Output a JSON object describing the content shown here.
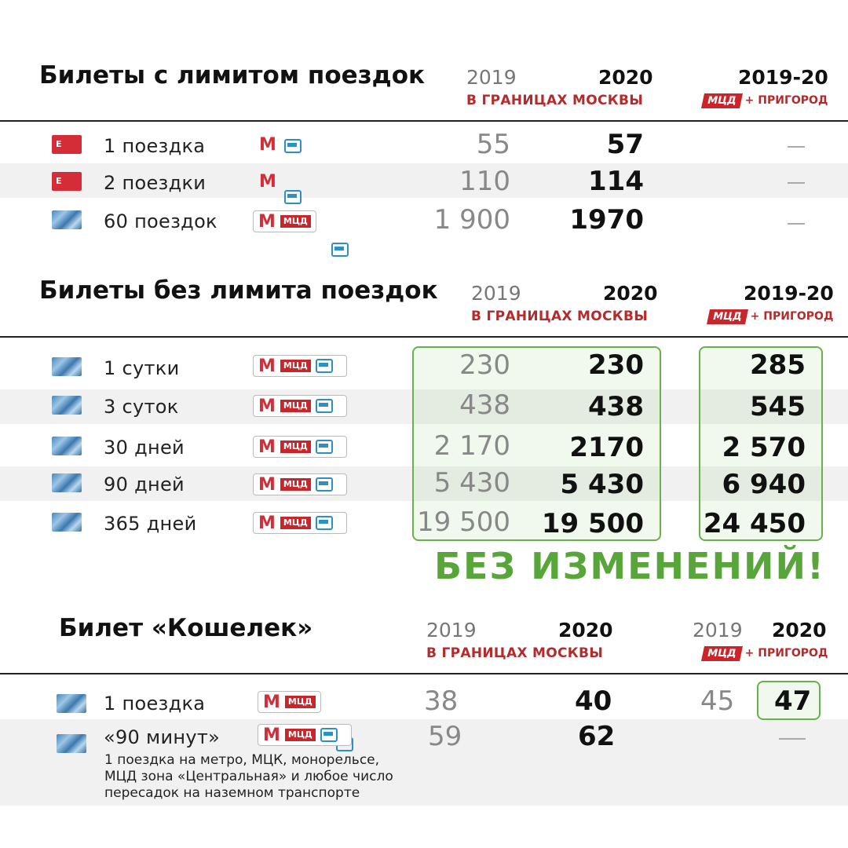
{
  "section1": {
    "title": "Билеты с лимитом поездок",
    "col2019": "2019",
    "col2020": "2020",
    "col2019_20": "2019-20",
    "moscow_label": "В ГРАНИЦАХ МОСКВЫ",
    "mcd_tag": "МЦД",
    "suburb_label": "+ ПРИГОРОД",
    "rows": [
      {
        "ticket_icon": "red-ticket-icon",
        "ticket_text": "E",
        "label": "1 поездка",
        "v2019": "55",
        "v2020": "57",
        "v2019_20": "—"
      },
      {
        "ticket_icon": "red-ticket-icon",
        "ticket_text": "E",
        "label": "2 поездки",
        "v2019": "110",
        "v2020": "114",
        "v2019_20": "—"
      },
      {
        "ticket_icon": "troika-card-icon",
        "label": "60 поездок",
        "v2019": "1 900",
        "v2020": "1970",
        "v2019_20": "—"
      }
    ]
  },
  "section2": {
    "title": "Билеты без лимита поездок",
    "col2019": "2019",
    "col2020": "2020",
    "col2019_20": "2019-20",
    "moscow_label": "В ГРАНИЦАХ МОСКВЫ",
    "mcd_tag": "МЦД",
    "suburb_label": "+ ПРИГОРОД",
    "rows": [
      {
        "label": "1 сутки",
        "v2019": "230",
        "v2020": "230",
        "v2019_20": "285"
      },
      {
        "label": "3 суток",
        "v2019": "438",
        "v2020": "438",
        "v2019_20": "545"
      },
      {
        "label": "30 дней",
        "v2019": "2 170",
        "v2020": "2170",
        "v2019_20": "2 570"
      },
      {
        "label": "90 дней",
        "v2019": "5 430",
        "v2020": "5 430",
        "v2019_20": "6 940"
      },
      {
        "label": "365 дней",
        "v2019": "19 500",
        "v2020": "19 500",
        "v2019_20": "24 450"
      }
    ],
    "no_change": "БЕЗ ИЗМЕНЕНИЙ!"
  },
  "section3": {
    "title": "Билет «Кошелек»",
    "col2019": "2019",
    "col2020": "2020",
    "col2019b": "2019",
    "col2020b": "2020",
    "moscow_label": "В ГРАНИЦАХ МОСКВЫ",
    "mcd_tag": "МЦД",
    "suburb_label": "+ ПРИГОРОД",
    "rows": [
      {
        "label": "1 поездка",
        "v2019": "38",
        "v2020": "40",
        "s2019": "45",
        "s2020": "47"
      },
      {
        "label": "«90 минут»",
        "v2019": "59",
        "v2020": "62",
        "s2020": "—",
        "note_line1": "1 поездка на метро, МЦК, монорельсе,",
        "note_line2": "МЦД зона «Центральная» и любое число",
        "note_line3": "пересадок на наземном транспорте"
      }
    ]
  },
  "icons": {
    "metro": "М",
    "mcd": "МЦД"
  },
  "colors": {
    "red": "#c8262b",
    "green": "#58a63a",
    "blue": "#2c8fc6"
  }
}
